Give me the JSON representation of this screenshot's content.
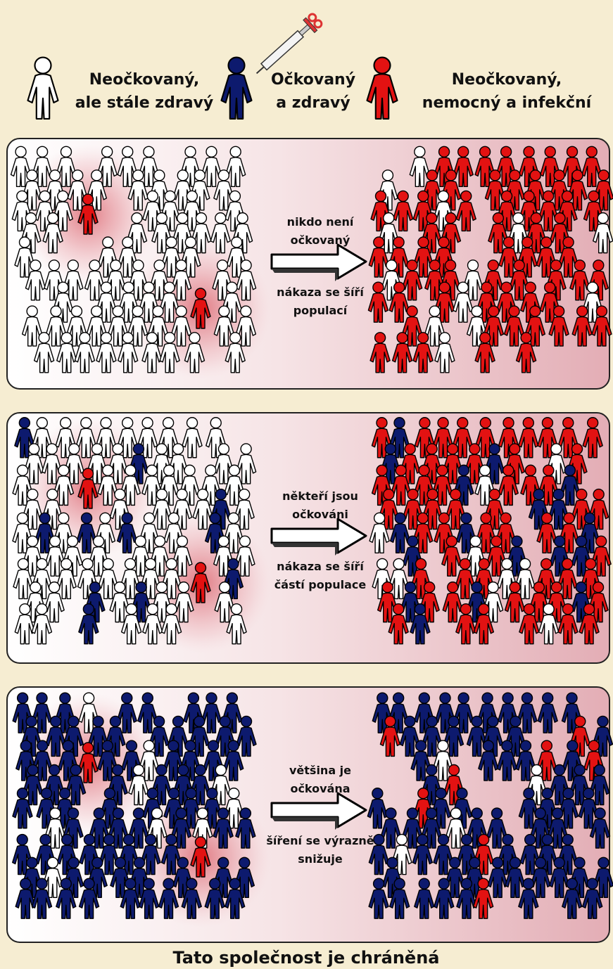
{
  "legend": [
    {
      "lines": [
        "Neočkovaný,",
        "ale stále zdravý"
      ]
    },
    {
      "lines": [
        "Očkovaný",
        "a zdravý"
      ]
    },
    {
      "lines": [
        "Neočkovaný,",
        "nemocný a infekční"
      ]
    }
  ],
  "panels": [
    {
      "arrow_label": [
        "nikdo není",
        "očkovaný"
      ],
      "spread_label": [
        "nákaza se šíří",
        "populací"
      ]
    },
    {
      "arrow_label": [
        "někteří jsou",
        "očkováni"
      ],
      "spread_label": [
        "nákaza se šíří",
        "částí populace"
      ]
    },
    {
      "arrow_label": [
        "většina je",
        "očkována"
      ],
      "spread_label": [
        "šíření se výrazně",
        "snižuje"
      ]
    }
  ],
  "footer": "Tato společnost je chráněná"
}
